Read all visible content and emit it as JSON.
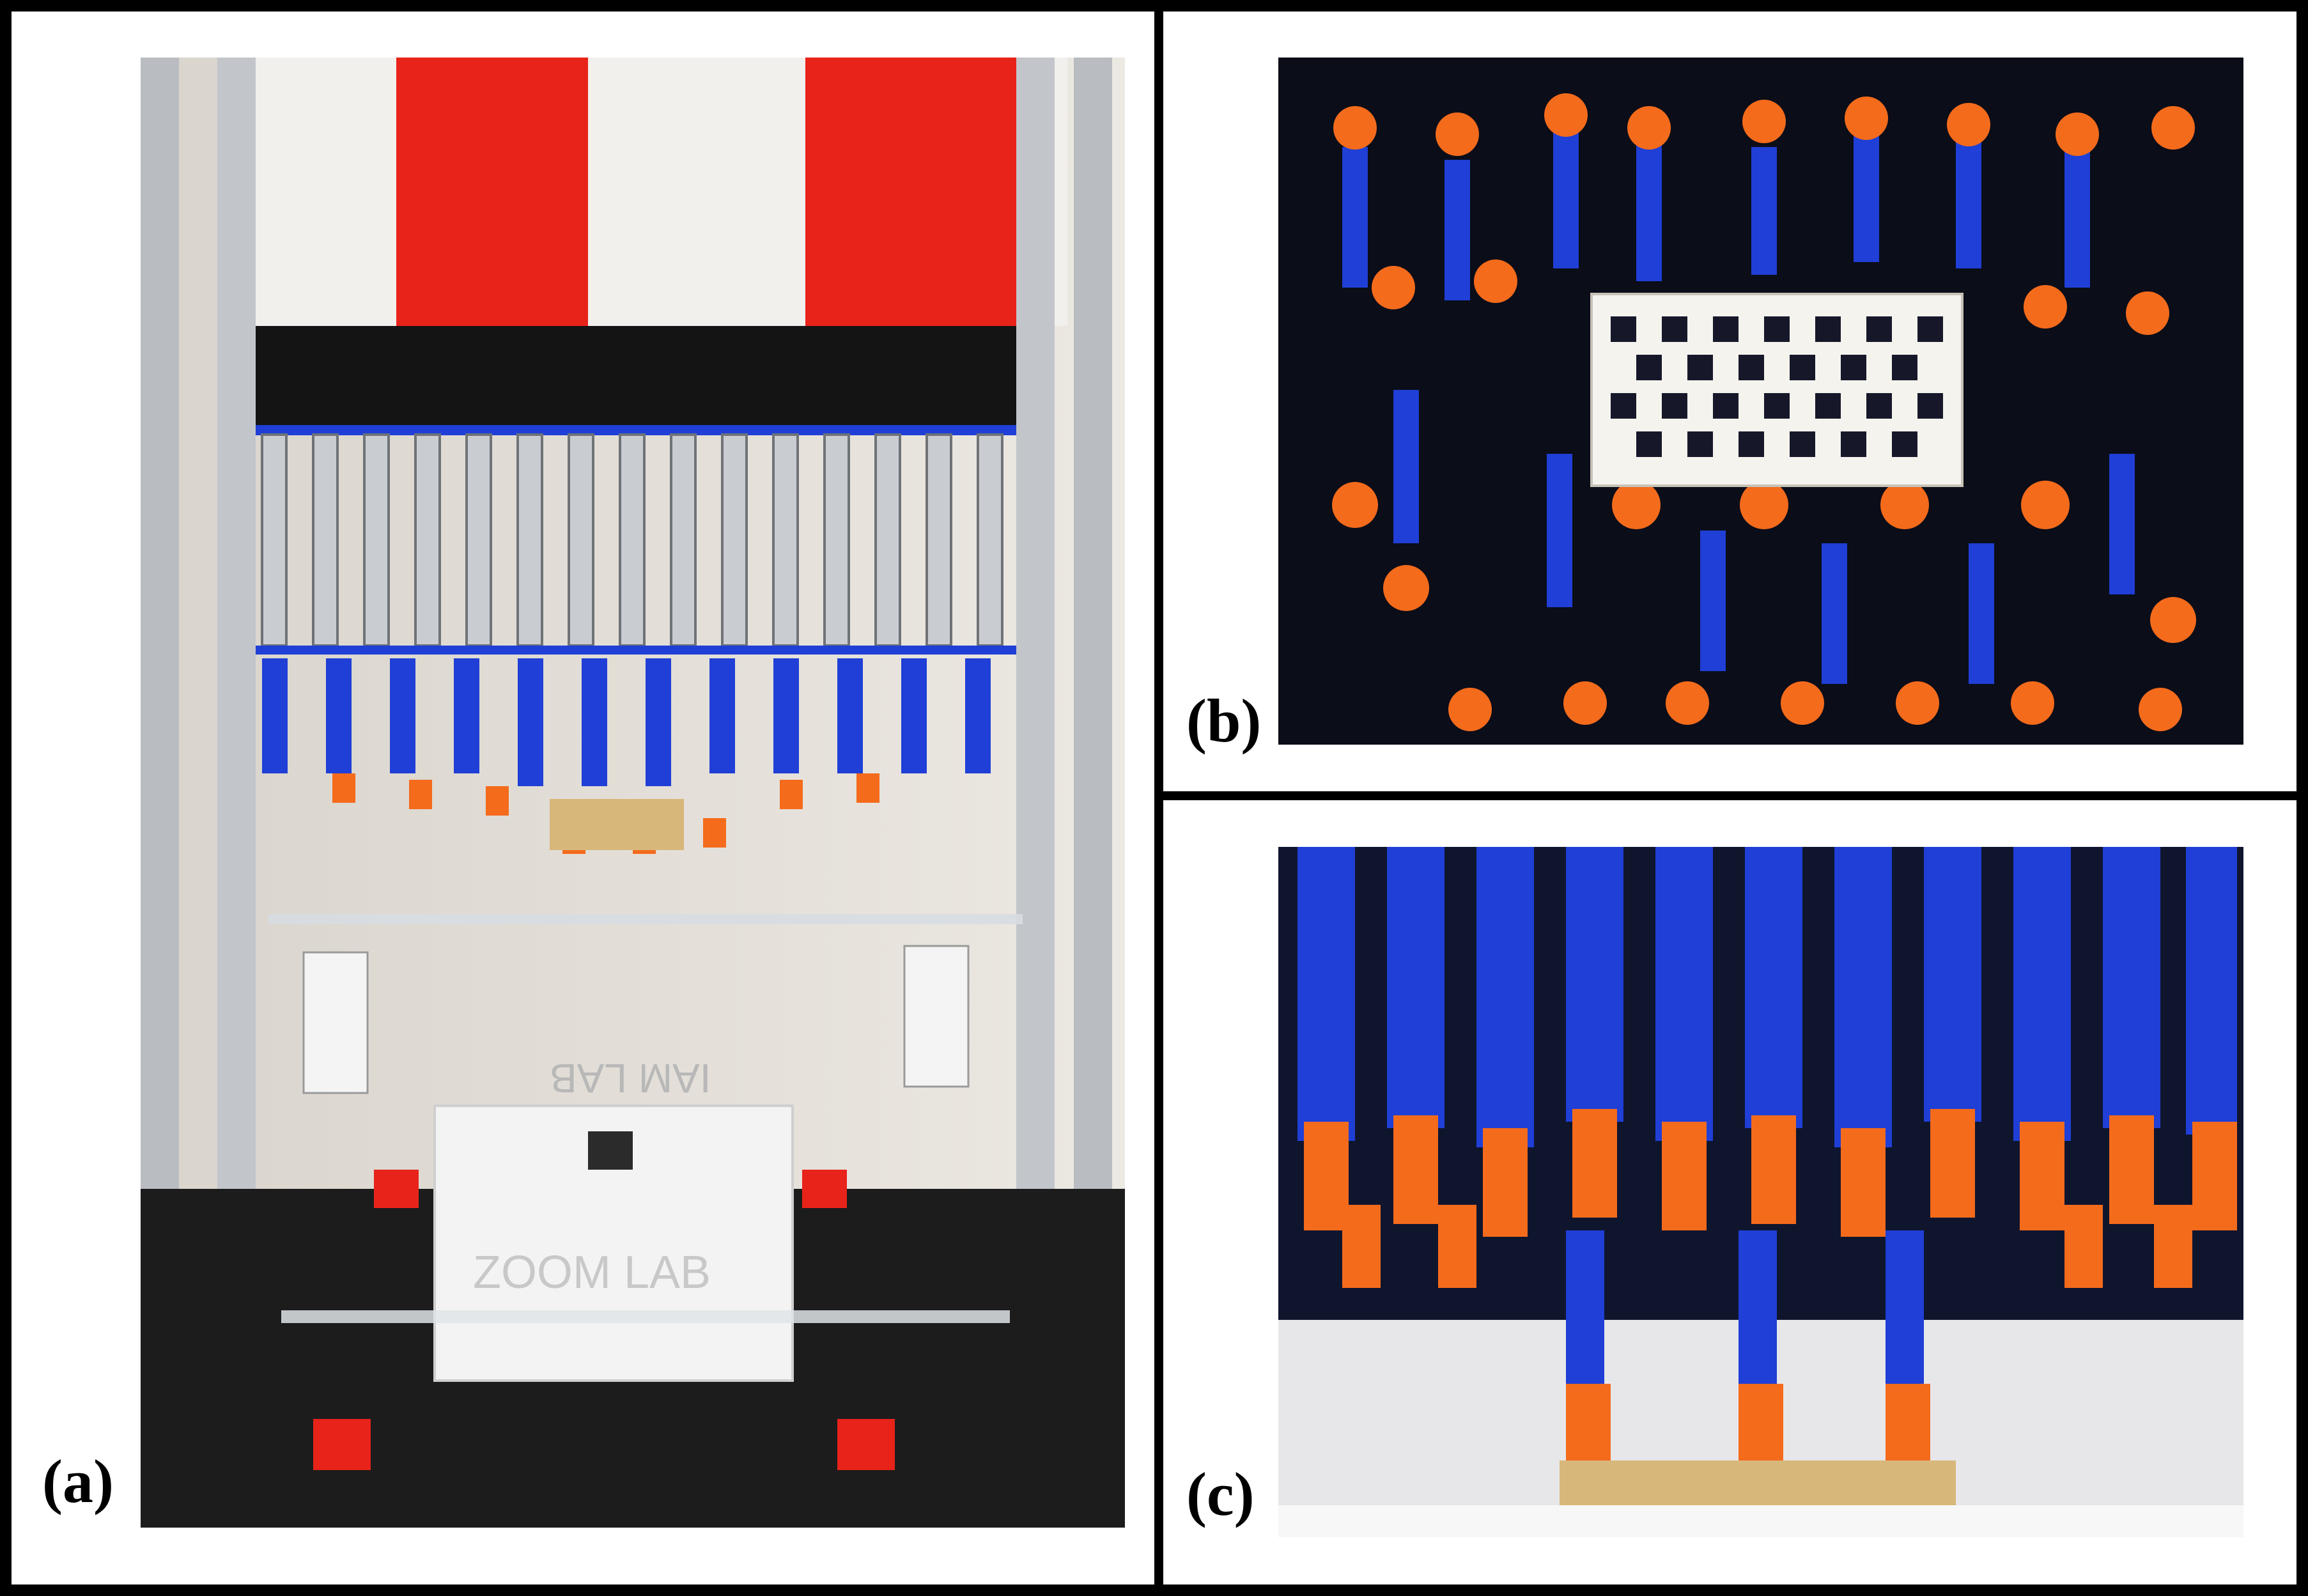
{
  "figure": {
    "panels": [
      {
        "label": "(a)",
        "content": {
          "top_text": "IAM LAB",
          "box_text": "ZOOM LAB"
        }
      },
      {
        "label": "(b)"
      },
      {
        "label": "(c)"
      }
    ]
  },
  "colors": {
    "frame": "#000000",
    "background": "#ffffff",
    "red": "#e8231a",
    "blue": "#1f3fd6",
    "orange": "#f46b1c",
    "aluminium": "#b9bdc2",
    "table": "#1c1c1c"
  }
}
